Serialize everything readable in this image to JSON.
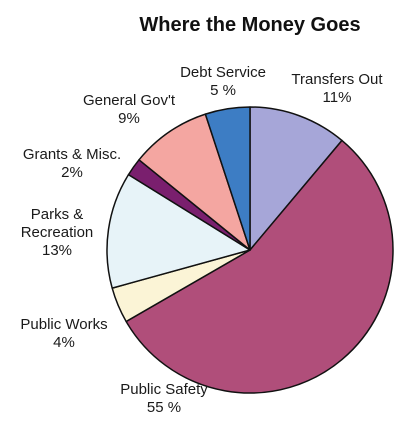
{
  "chart_data": {
    "type": "pie",
    "title": "Where the Money Goes",
    "start": "12 o'clock",
    "direction": "clockwise",
    "slices": [
      {
        "label": "Transfers Out",
        "value_label": "11%",
        "value": 11,
        "color": "#a6a6d8"
      },
      {
        "label": "Public Safety",
        "value_label": "55 %",
        "value": 55,
        "color": "#b04e7a"
      },
      {
        "label": "Public Works",
        "value_label": "4%",
        "value": 4,
        "color": "#fbf4d6"
      },
      {
        "label": "Parks & Recreation",
        "label_lines": [
          "Parks &",
          "Recreation"
        ],
        "value_label": "13%",
        "value": 13,
        "color": "#e7f3f8"
      },
      {
        "label": "Grants & Misc.",
        "value_label": "2%",
        "value": 2,
        "color": "#7a1f6e"
      },
      {
        "label": "General Gov't",
        "value_label": "9%",
        "value": 9,
        "color": "#f4a6a1"
      },
      {
        "label": "Debt Service",
        "value_label": "5 %",
        "value": 5,
        "color": "#3d7dc4"
      }
    ]
  }
}
